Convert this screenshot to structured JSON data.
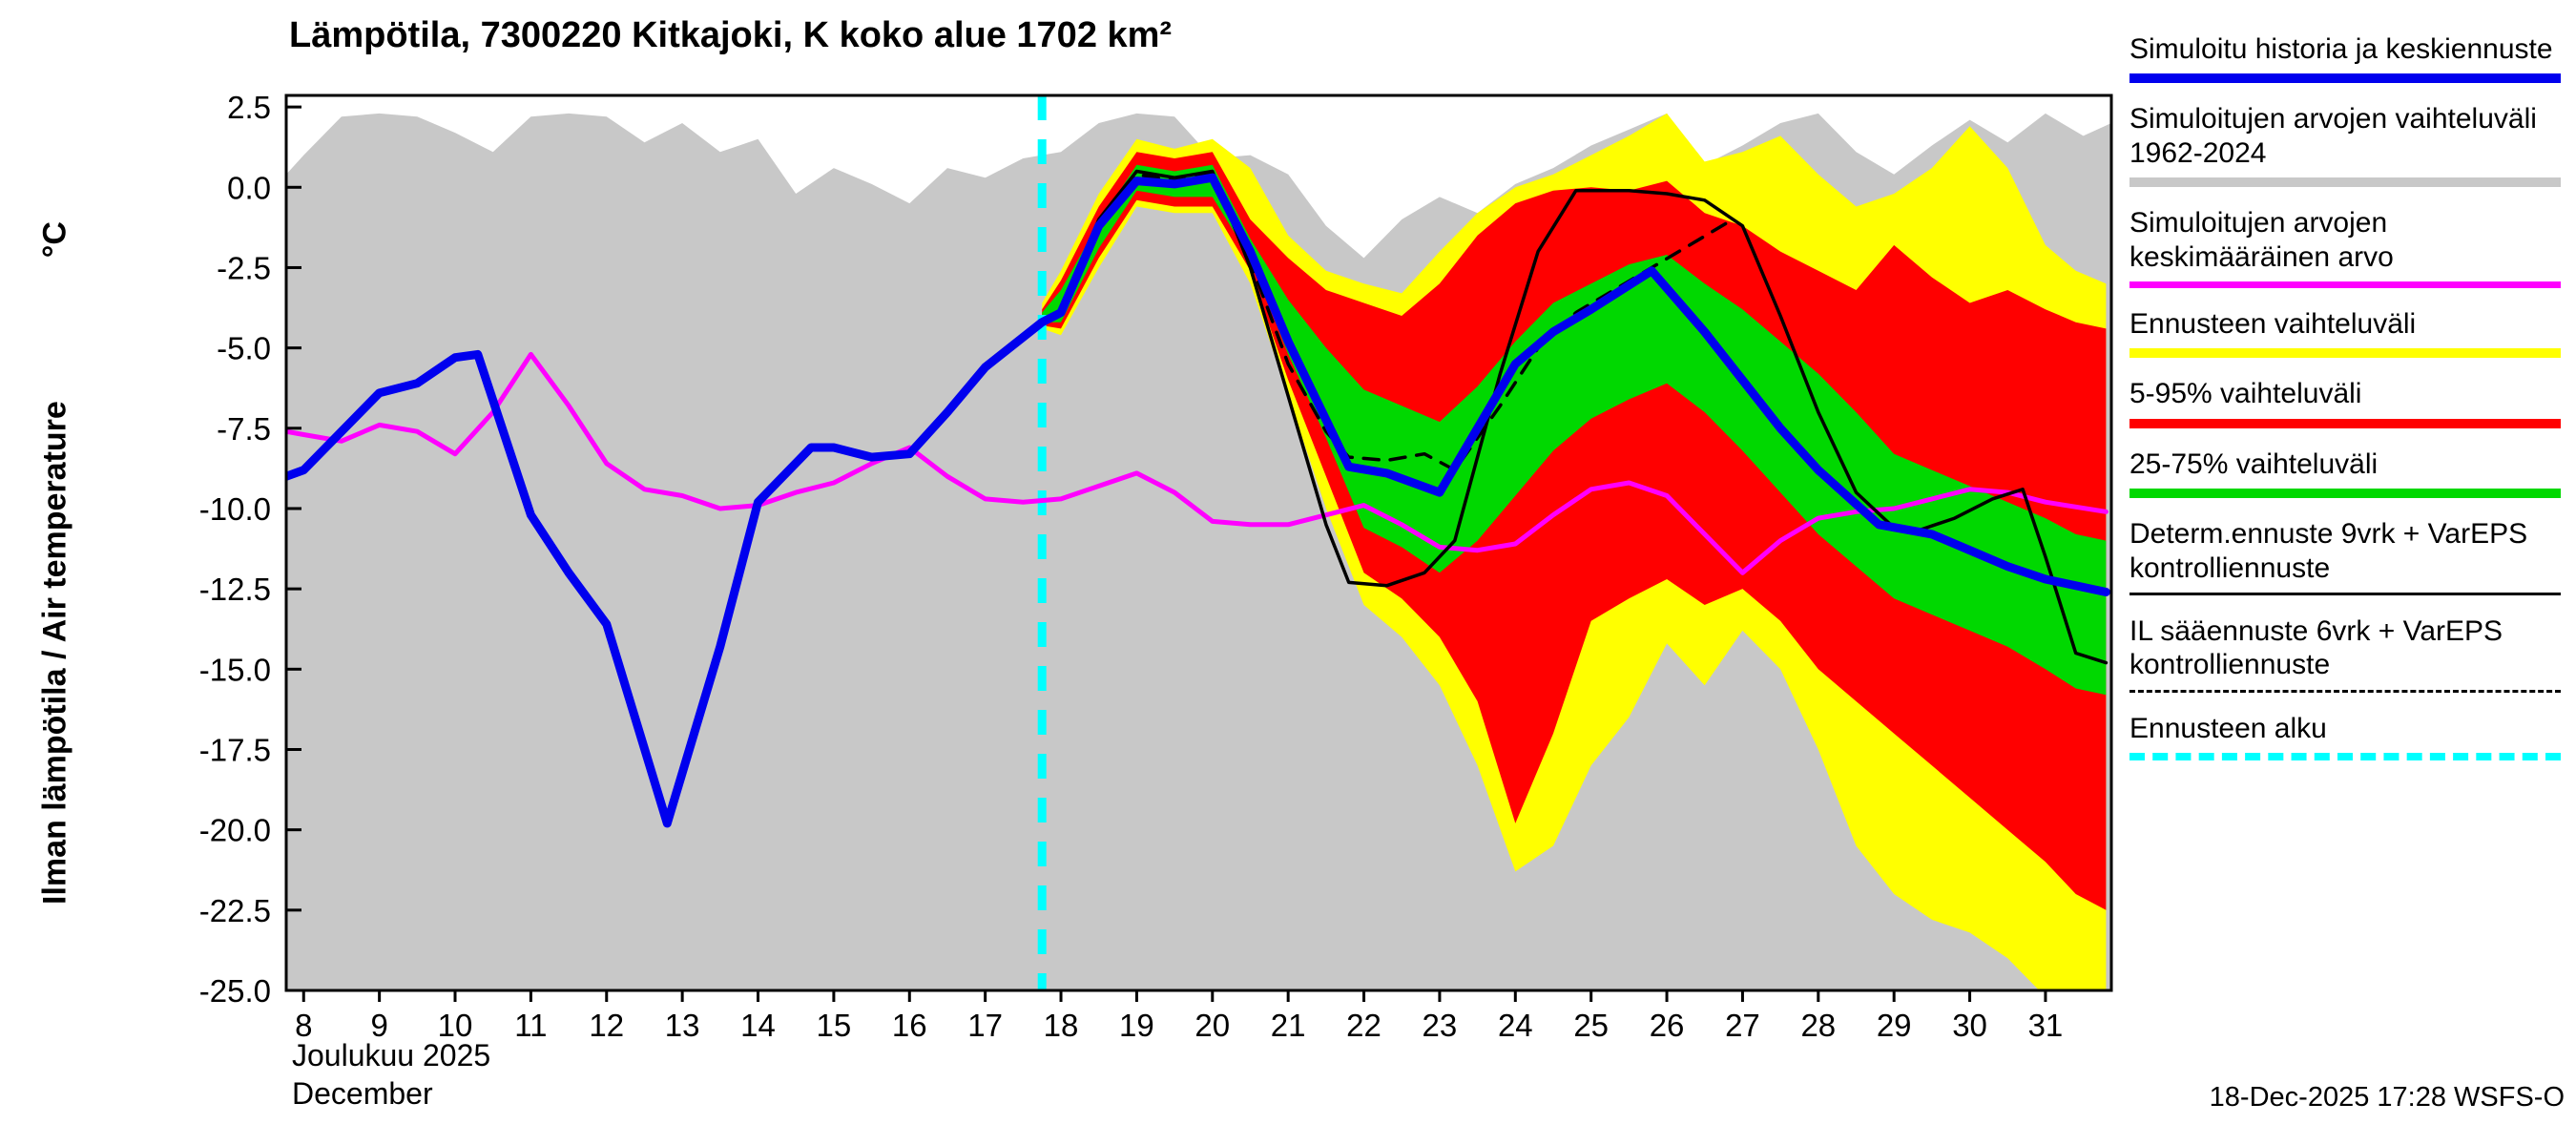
{
  "title": "Lämpötila, 7300220 Kitkajoki, K koko alue 1702 km²",
  "y_axis": {
    "label": "Ilman lämpötila / Air temperature",
    "unit": "°C"
  },
  "x_axis": {
    "month_label": "Joulukuu 2025",
    "month_label_en": "December"
  },
  "footer": {
    "timestamp": "18-Dec-2025 17:28 WSFS-O"
  },
  "colors": {
    "history_forecast_mean": "#0000ee",
    "sim_range": "#c8c8c8",
    "sim_mean": "#ff00ff",
    "forecast_range": "#ffff00",
    "p5_95": "#ff0000",
    "p25_75": "#00d800",
    "forecast_start": "#00ffff",
    "deterministic": "#000000"
  },
  "legend": {
    "items": [
      {
        "key": "history-and-mean-forecast",
        "label": "Simuloitu historia ja keskiennuste",
        "color": "#0000ee",
        "thickness": 10,
        "dash": "solid"
      },
      {
        "key": "simulated-range-1962-2024",
        "label": "Simuloitujen arvojen vaihteluväli 1962-2024",
        "color": "#c8c8c8",
        "thickness": 10,
        "dash": "solid"
      },
      {
        "key": "simulated-mean-value",
        "label": "Simuloitujen arvojen keskimääräinen arvo",
        "color": "#ff00ff",
        "thickness": 7,
        "dash": "solid"
      },
      {
        "key": "forecast-range",
        "label": "Ennusteen vaihteluväli",
        "color": "#ffff00",
        "thickness": 10,
        "dash": "solid"
      },
      {
        "key": "range-5-95",
        "label": "5-95% vaihteluväli",
        "color": "#ff0000",
        "thickness": 10,
        "dash": "solid"
      },
      {
        "key": "range-25-75",
        "label": "25-75% vaihteluväli",
        "color": "#00d800",
        "thickness": 10,
        "dash": "solid"
      },
      {
        "key": "determ-ennuste",
        "label": "Determ.ennuste 9vrk + VarEPS kontrolliennuste",
        "color": "#000000",
        "thickness": 3,
        "dash": "solid"
      },
      {
        "key": "il-saaennuste",
        "label": "IL sääennuste 6vrk  + VarEPS kontrolliennuste",
        "color": "#000000",
        "thickness": 3,
        "dash": "dashed"
      },
      {
        "key": "forecast-start",
        "label": "Ennusteen alku",
        "color": "#00ffff",
        "thickness": 8,
        "dash": "dashed"
      }
    ]
  },
  "chart_data": {
    "type": "area",
    "title": "Lämpötila, 7300220 Kitkajoki, K koko alue 1702 km²",
    "xlabel": "Joulukuu 2025 / December",
    "ylabel": "Ilman lämpötila / Air temperature °C",
    "x_range": [
      7.77,
      31.87
    ],
    "y_range": [
      -25,
      2.86
    ],
    "grid": false,
    "legend_position": "right",
    "forecast_start_day": 17.75,
    "forecast_start_color": "#00ffff",
    "y_ticks": {
      "values": [
        2.5,
        0,
        -2.5,
        -5,
        -7.5,
        -10,
        -12.5,
        -15,
        -17.5,
        -20,
        -22.5,
        -25
      ],
      "labels": [
        "2.5",
        "0.0",
        "-2.5",
        "-5.0",
        "-7.5",
        "-10.0",
        "-12.5",
        "-15.0",
        "-17.5",
        "-20.0",
        "-22.5",
        "-25.0"
      ]
    },
    "x_ticks": {
      "values": [
        8,
        9,
        10,
        11,
        12,
        13,
        14,
        15,
        16,
        17,
        18,
        19,
        20,
        21,
        22,
        23,
        24,
        25,
        26,
        27,
        28,
        29,
        30,
        31
      ],
      "labels": [
        "8",
        "9",
        "10",
        "11",
        "12",
        "13",
        "14",
        "15",
        "16",
        "17",
        "18",
        "19",
        "20",
        "21",
        "22",
        "23",
        "24",
        "25",
        "26",
        "27",
        "28",
        "29",
        "30",
        "31"
      ]
    },
    "bands": [
      {
        "name": "simulated-range-1962-2024",
        "color": "#c8c8c8",
        "x": [
          7.77,
          8,
          8.5,
          9,
          9.5,
          10,
          10.5,
          11,
          11.5,
          12,
          12.5,
          13,
          13.5,
          14,
          14.5,
          15,
          15.5,
          16,
          16.5,
          17,
          17.5,
          18,
          18.5,
          19,
          19.5,
          20,
          20.5,
          21,
          21.5,
          22,
          22.5,
          23,
          23.5,
          24,
          24.5,
          25,
          25.5,
          26,
          26.5,
          27,
          27.5,
          28,
          28.5,
          29,
          29.5,
          30,
          30.5,
          31,
          31.5,
          31.87
        ],
        "top": [
          0.4,
          1.0,
          2.2,
          2.3,
          2.2,
          1.7,
          1.1,
          2.2,
          2.3,
          2.2,
          1.4,
          2.0,
          1.1,
          1.5,
          -0.2,
          0.6,
          0.1,
          -0.5,
          0.6,
          0.3,
          0.9,
          1.1,
          2.0,
          2.3,
          2.2,
          0.9,
          1.0,
          0.4,
          -1.2,
          -2.2,
          -1.0,
          -0.3,
          -0.8,
          0.1,
          0.6,
          1.3,
          1.8,
          2.3,
          0.7,
          1.3,
          2.0,
          2.3,
          1.1,
          0.4,
          1.3,
          2.1,
          1.4,
          2.3,
          1.6,
          2.0
        ],
        "bottom": -25.6
      },
      {
        "name": "forecast-range",
        "color": "#ffff00",
        "x": [
          17.75,
          18,
          18.5,
          19,
          19.5,
          20,
          20.5,
          21,
          21.5,
          22,
          22.5,
          23,
          23.5,
          24,
          24.5,
          25,
          25.5,
          26,
          26.5,
          27,
          27.5,
          28,
          28.5,
          29,
          29.5,
          30,
          30.5,
          31,
          31.4,
          31.8
        ],
        "top": [
          -3.6,
          -2.6,
          -0.2,
          1.5,
          1.2,
          1.5,
          0.6,
          -1.5,
          -2.6,
          -3.0,
          -3.3,
          -2.0,
          -0.8,
          0.0,
          0.4,
          1.0,
          1.6,
          2.3,
          0.8,
          1.1,
          1.6,
          0.4,
          -0.6,
          -0.2,
          0.6,
          1.9,
          0.6,
          -1.8,
          -2.6,
          -3.0
        ],
        "bottom": [
          -4.4,
          -4.6,
          -2.5,
          -0.6,
          -0.8,
          -0.8,
          -3.0,
          -6.5,
          -10.0,
          -13.0,
          -14.0,
          -15.5,
          -18.0,
          -21.3,
          -20.5,
          -18.0,
          -16.5,
          -14.2,
          -15.5,
          -13.8,
          -15.0,
          -17.5,
          -20.5,
          -22.0,
          -22.8,
          -23.2,
          -24.0,
          -25.2,
          -25.6,
          -26.0
        ]
      },
      {
        "name": "range-5-95",
        "color": "#ff0000",
        "x": [
          17.75,
          18,
          18.5,
          19,
          19.5,
          20,
          20.5,
          21,
          21.5,
          22,
          22.5,
          23,
          23.5,
          24,
          24.5,
          25,
          25.5,
          26,
          26.5,
          27,
          27.5,
          28,
          28.5,
          29,
          29.5,
          30,
          30.5,
          31,
          31.4,
          31.8
        ],
        "top": [
          -3.8,
          -2.9,
          -0.6,
          1.1,
          0.9,
          1.1,
          -1.0,
          -2.2,
          -3.2,
          -3.6,
          -4.0,
          -3.0,
          -1.5,
          -0.5,
          -0.1,
          0.0,
          -0.1,
          0.2,
          -0.8,
          -1.2,
          -2.0,
          -2.6,
          -3.2,
          -1.8,
          -2.8,
          -3.6,
          -3.2,
          -3.8,
          -4.2,
          -4.4
        ],
        "bottom": [
          -4.3,
          -4.4,
          -2.2,
          -0.4,
          -0.6,
          -0.6,
          -2.6,
          -6.0,
          -9.0,
          -12.0,
          -12.8,
          -14.0,
          -16.0,
          -19.8,
          -17.0,
          -13.5,
          -12.8,
          -12.2,
          -13.0,
          -12.5,
          -13.5,
          -15.0,
          -16.0,
          -17.0,
          -18.0,
          -19.0,
          -20.0,
          -21.0,
          -22.0,
          -22.5
        ]
      },
      {
        "name": "range-25-75",
        "color": "#00d800",
        "x": [
          17.75,
          18,
          18.5,
          19,
          19.5,
          20,
          20.5,
          21,
          21.5,
          22,
          22.5,
          23,
          23.5,
          24,
          24.5,
          25,
          25.5,
          26,
          26.5,
          27,
          27.5,
          28,
          28.5,
          29,
          29.5,
          30,
          30.5,
          31,
          31.4,
          31.8
        ],
        "top": [
          -3.9,
          -3.2,
          -1.1,
          0.7,
          0.5,
          0.7,
          -1.6,
          -3.5,
          -5.0,
          -6.3,
          -6.8,
          -7.3,
          -6.2,
          -4.8,
          -3.6,
          -3.0,
          -2.4,
          -2.1,
          -3.0,
          -3.8,
          -4.8,
          -5.8,
          -7.0,
          -8.3,
          -8.8,
          -9.3,
          -9.8,
          -10.3,
          -10.8,
          -11.0
        ],
        "bottom": [
          -4.2,
          -4.2,
          -1.9,
          -0.1,
          -0.3,
          -0.3,
          -2.2,
          -5.2,
          -7.8,
          -10.6,
          -11.2,
          -12.0,
          -11.0,
          -9.6,
          -8.2,
          -7.2,
          -6.6,
          -6.1,
          -7.0,
          -8.2,
          -9.5,
          -10.8,
          -11.8,
          -12.8,
          -13.3,
          -13.8,
          -14.3,
          -15.0,
          -15.6,
          -15.8
        ]
      }
    ],
    "lines": [
      {
        "name": "simulated-mean",
        "color": "#ff00ff",
        "width": 5,
        "dash": null,
        "x": [
          7.77,
          8,
          8.5,
          9,
          9.5,
          10,
          10.5,
          11,
          11.5,
          12,
          12.5,
          13,
          13.5,
          14,
          14.5,
          15,
          15.5,
          16,
          16.5,
          17,
          17.5,
          18,
          18.5,
          19,
          19.5,
          20,
          20.5,
          21,
          21.5,
          22,
          22.5,
          23,
          23.5,
          24,
          24.5,
          25,
          25.5,
          26,
          26.5,
          27,
          27.5,
          28,
          28.5,
          29,
          29.5,
          30,
          30.5,
          31,
          31.8
        ],
        "y": [
          -7.6,
          -7.7,
          -7.9,
          -7.4,
          -7.6,
          -8.3,
          -7.0,
          -5.2,
          -6.8,
          -8.6,
          -9.4,
          -9.6,
          -10.0,
          -9.9,
          -9.5,
          -9.2,
          -8.6,
          -8.1,
          -9.0,
          -9.7,
          -9.8,
          -9.7,
          -9.3,
          -8.9,
          -9.5,
          -10.4,
          -10.5,
          -10.5,
          -10.2,
          -9.9,
          -10.5,
          -11.2,
          -11.3,
          -11.1,
          -10.2,
          -9.4,
          -9.2,
          -9.6,
          -10.8,
          -12.0,
          -11.0,
          -10.3,
          -10.1,
          -10.0,
          -9.7,
          -9.4,
          -9.5,
          -9.8,
          -10.1
        ]
      },
      {
        "name": "determ-forecast-plus-vareps-control",
        "color": "#000000",
        "width": 3.5,
        "dash": null,
        "x": [
          17.75,
          18,
          18.5,
          19,
          19.5,
          20,
          20.5,
          21,
          21.5,
          21.8,
          22.3,
          22.8,
          23.2,
          23.8,
          24.3,
          24.8,
          25.5,
          26,
          26.5,
          27,
          27.5,
          28,
          28.5,
          29,
          29.3,
          29.8,
          30.3,
          30.7,
          31,
          31.4,
          31.8
        ],
        "y": [
          -4.2,
          -3.8,
          -1.0,
          0.5,
          0.3,
          0.5,
          -2.5,
          -6.5,
          -10.5,
          -12.3,
          -12.4,
          -12.0,
          -11.0,
          -5.8,
          -2.0,
          -0.1,
          -0.1,
          -0.2,
          -0.4,
          -1.2,
          -4.0,
          -7.0,
          -9.5,
          -10.6,
          -10.7,
          -10.3,
          -9.7,
          -9.4,
          -11.5,
          -14.5,
          -14.8
        ]
      },
      {
        "name": "il-forecast-plus-vareps-control",
        "color": "#000000",
        "width": 3.5,
        "dash": "16 12",
        "x": [
          17.75,
          18,
          18.5,
          19,
          19.5,
          20,
          20.5,
          21,
          21.5,
          21.8,
          22.3,
          22.8,
          23.2,
          23.8,
          24.3,
          24.8,
          25.3,
          25.8,
          26.3,
          26.8
        ],
        "y": [
          -4.2,
          -3.9,
          -1.1,
          0.4,
          0.2,
          0.4,
          -2.3,
          -5.5,
          -7.6,
          -8.4,
          -8.5,
          -8.3,
          -8.8,
          -6.8,
          -5.0,
          -3.9,
          -3.2,
          -2.5,
          -1.8,
          -1.1
        ]
      },
      {
        "name": "simulated-history-and-mean-forecast",
        "color": "#0000ee",
        "width": 9,
        "dash": null,
        "x": [
          7.77,
          8,
          9,
          9.5,
          10,
          10.3,
          11,
          11.5,
          12,
          12.8,
          13.5,
          14,
          14.7,
          15,
          15.5,
          16,
          16.5,
          17,
          17.75,
          18,
          18.5,
          19,
          19.5,
          20,
          20.5,
          21,
          21.8,
          22.3,
          23,
          23.5,
          24,
          24.5,
          25,
          25.8,
          26.5,
          27,
          27.5,
          28,
          28.8,
          29.5,
          30,
          30.5,
          31,
          31.8
        ],
        "y": [
          -9.0,
          -8.8,
          -6.4,
          -6.1,
          -5.3,
          -5.2,
          -10.2,
          -12.0,
          -13.6,
          -19.8,
          -14.3,
          -9.8,
          -8.1,
          -8.1,
          -8.4,
          -8.3,
          -7.0,
          -5.6,
          -4.2,
          -3.9,
          -1.2,
          0.2,
          0.1,
          0.3,
          -2.0,
          -4.8,
          -8.7,
          -8.9,
          -9.5,
          -7.5,
          -5.5,
          -4.5,
          -3.8,
          -2.6,
          -4.5,
          -6.0,
          -7.5,
          -8.8,
          -10.5,
          -10.8,
          -11.3,
          -11.8,
          -12.2,
          -12.6
        ]
      }
    ]
  }
}
